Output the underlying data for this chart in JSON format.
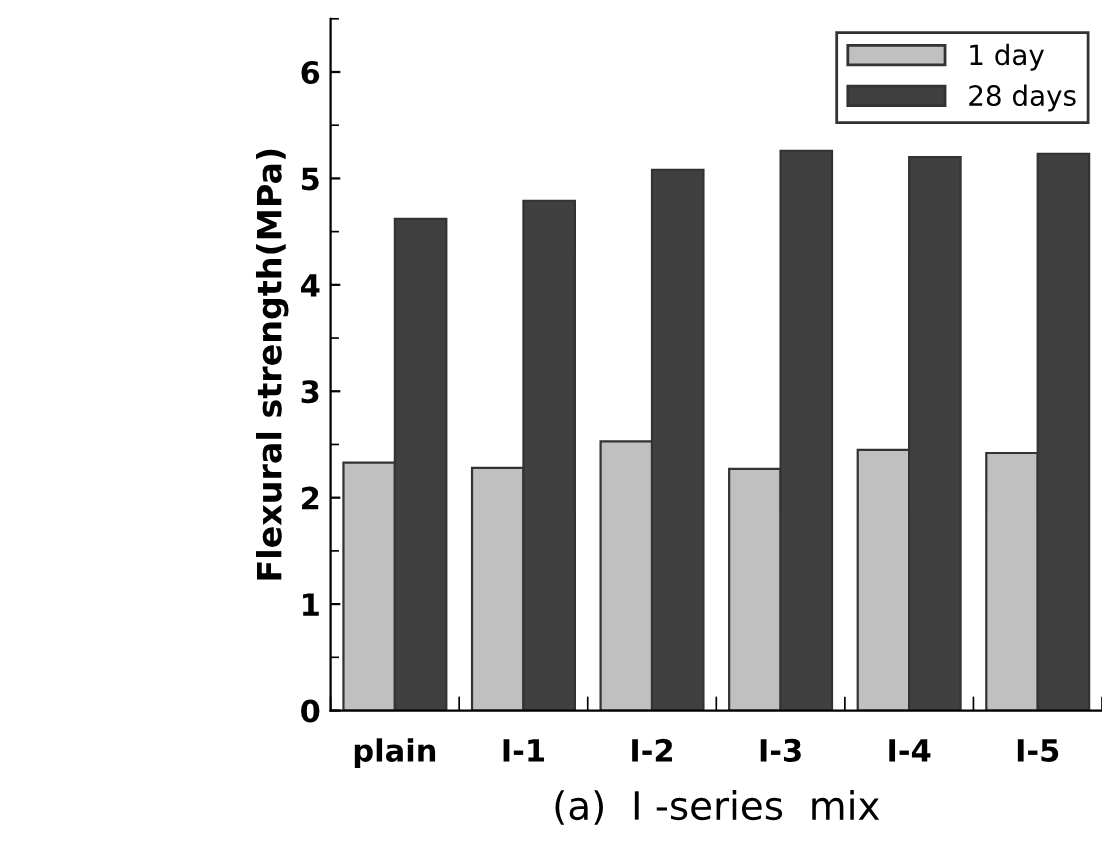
{
  "chart_data": {
    "type": "bar",
    "xlabel": "(a)  Ⅰ -series  mix",
    "ylabel": "Flexural strength(MPa)",
    "categories": [
      "plain",
      "I-1",
      "I-2",
      "I-3",
      "I-4",
      "I-5"
    ],
    "series": [
      {
        "name": "1 day",
        "color": "#c0c0c0",
        "values": [
          2.33,
          2.28,
          2.53,
          2.27,
          2.45,
          2.42
        ]
      },
      {
        "name": "28 days",
        "color": "#404040",
        "values": [
          4.62,
          4.79,
          5.08,
          5.26,
          5.2,
          5.23
        ]
      }
    ],
    "ylim": [
      0,
      6.5
    ],
    "yticks": [
      0,
      1,
      2,
      3,
      4,
      5,
      6
    ],
    "grid": false,
    "legend": "top right"
  }
}
